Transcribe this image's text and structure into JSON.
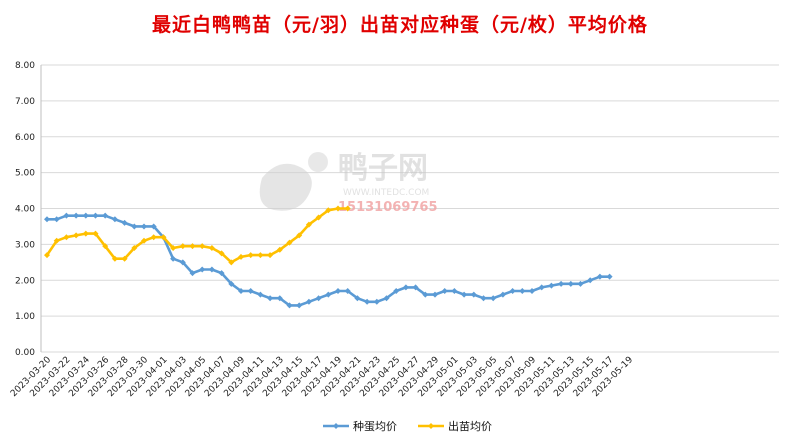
{
  "chart_data": {
    "type": "line",
    "title": "最近白鸭鸭苗（元/羽）出苗对应种蛋（元/枚）平均价格",
    "xlabel": "",
    "ylabel": "",
    "ylim": [
      0,
      8
    ],
    "yticks": [
      "0.00",
      "1.00",
      "2.00",
      "3.00",
      "4.00",
      "5.00",
      "6.00",
      "7.00",
      "8.00"
    ],
    "grid": true,
    "legend_position": "bottom",
    "x_tick_labels": [
      "2023-03-20",
      "2023-03-22",
      "2023-03-24",
      "2023-03-26",
      "2023-03-28",
      "2023-03-30",
      "2023-04-01",
      "2023-04-03",
      "2023-04-05",
      "2023-04-07",
      "2023-04-09",
      "2023-04-11",
      "2023-04-13",
      "2023-04-15",
      "2023-04-17",
      "2023-04-19",
      "2023-04-21",
      "2023-04-23",
      "2023-04-25",
      "2023-04-27",
      "2023-04-29",
      "2023-05-01",
      "2023-05-03",
      "2023-05-05",
      "2023-05-07",
      "2023-05-09",
      "2023-05-11",
      "2023-05-13",
      "2023-05-15",
      "2023-05-17",
      "2023-05-19"
    ],
    "series": [
      {
        "name": "种蛋均价",
        "color": "#5b9bd5",
        "values": [
          3.7,
          3.7,
          3.8,
          3.8,
          3.8,
          3.8,
          3.8,
          3.7,
          3.6,
          3.5,
          3.5,
          3.5,
          3.2,
          2.6,
          2.5,
          2.2,
          2.3,
          2.3,
          2.2,
          1.9,
          1.7,
          1.7,
          1.6,
          1.5,
          1.5,
          1.3,
          1.3,
          1.4,
          1.5,
          1.6,
          1.7,
          1.7,
          1.5,
          1.4,
          1.4,
          1.5,
          1.7,
          1.8,
          1.8,
          1.6,
          1.6,
          1.7,
          1.7,
          1.6,
          1.6,
          1.5,
          1.5,
          1.6,
          1.7,
          1.7,
          1.7,
          1.8,
          1.85,
          1.9,
          1.9,
          1.9,
          2.0,
          2.1,
          2.1
        ]
      },
      {
        "name": "出苗均价",
        "color": "#ffc000",
        "values": [
          2.7,
          3.1,
          3.2,
          3.25,
          3.3,
          3.3,
          2.95,
          2.6,
          2.6,
          2.9,
          3.1,
          3.2,
          3.2,
          2.9,
          2.95,
          2.95,
          2.95,
          2.9,
          2.75,
          2.5,
          2.65,
          2.7,
          2.7,
          2.7,
          2.85,
          3.05,
          3.25,
          3.55,
          3.75,
          3.95,
          4.0,
          4.0
        ]
      }
    ]
  },
  "watermark": {
    "brand": "鸭子网",
    "url": "WWW.INTEDC.COM",
    "phone": "15131069765"
  }
}
